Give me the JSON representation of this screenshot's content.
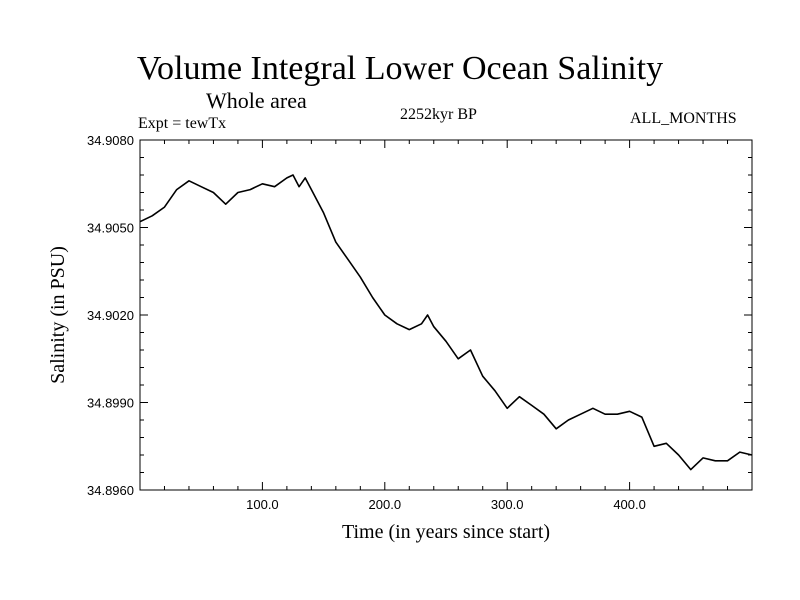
{
  "chart_data": {
    "type": "line",
    "title": "Volume Integral Lower Ocean Salinity",
    "subtitle": "Whole area",
    "experiment": "Expt = tewTx",
    "period": "2252kyr BP",
    "months": "ALL_MONTHS",
    "xlabel": "Time (in years since start)",
    "ylabel": "Salinity (in PSU)",
    "xlim": [
      0,
      500
    ],
    "ylim": [
      34.896,
      34.908
    ],
    "x_ticks": [
      100,
      200,
      300,
      400
    ],
    "x_tick_labels": [
      "100.0",
      "200.0",
      "300.0",
      "400.0"
    ],
    "y_ticks": [
      34.896,
      34.899,
      34.902,
      34.905,
      34.908
    ],
    "y_tick_labels": [
      "34.8960",
      "34.8990",
      "34.9020",
      "34.9050",
      "34.9080"
    ],
    "series": [
      {
        "name": "salinity",
        "x": [
          0,
          10,
          20,
          30,
          40,
          50,
          60,
          70,
          80,
          90,
          100,
          110,
          120,
          125,
          130,
          135,
          140,
          150,
          160,
          170,
          180,
          190,
          200,
          210,
          220,
          230,
          235,
          240,
          250,
          260,
          270,
          280,
          290,
          300,
          310,
          320,
          330,
          340,
          350,
          360,
          370,
          380,
          390,
          400,
          410,
          420,
          430,
          440,
          450,
          460,
          470,
          480,
          490,
          500
        ],
        "y": [
          34.9052,
          34.9054,
          34.9057,
          34.9063,
          34.9066,
          34.9064,
          34.9062,
          34.9058,
          34.9062,
          34.9063,
          34.9065,
          34.9064,
          34.9067,
          34.9068,
          34.9064,
          34.9067,
          34.9063,
          34.9055,
          34.9045,
          34.9039,
          34.9033,
          34.9026,
          34.902,
          34.9017,
          34.9015,
          34.9017,
          34.902,
          34.9016,
          34.9011,
          34.9005,
          34.9008,
          34.8999,
          34.8994,
          34.8988,
          34.8992,
          34.8989,
          34.8986,
          34.8981,
          34.8984,
          34.8986,
          34.8988,
          34.8986,
          34.8986,
          34.8987,
          34.8985,
          34.8975,
          34.8976,
          34.8972,
          34.8967,
          34.8971,
          34.897,
          34.897,
          34.8973,
          34.8972
        ]
      }
    ]
  }
}
